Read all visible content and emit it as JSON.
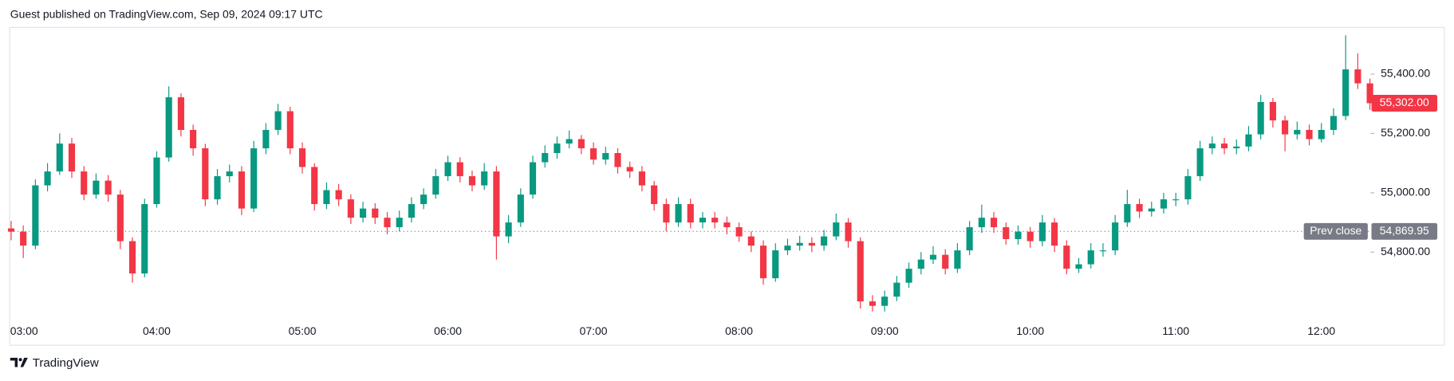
{
  "header": "Guest published on TradingView.com, Sep 09, 2024 09:17 UTC",
  "footer": "TradingView",
  "chart_data": {
    "type": "candlestick",
    "up_color": "#089981",
    "down_color": "#f23645",
    "x": [
      "03:00",
      "03:05",
      "03:10",
      "03:15",
      "03:20",
      "03:25",
      "03:30",
      "03:35",
      "03:40",
      "03:45",
      "03:50",
      "03:55",
      "04:00",
      "04:05",
      "04:10",
      "04:15",
      "04:20",
      "04:25",
      "04:30",
      "04:35",
      "04:40",
      "04:45",
      "04:50",
      "04:55",
      "05:00",
      "05:05",
      "05:10",
      "05:15",
      "05:20",
      "05:25",
      "05:30",
      "05:35",
      "05:40",
      "05:45",
      "05:50",
      "05:55",
      "06:00",
      "06:05",
      "06:10",
      "06:15",
      "06:20",
      "06:25",
      "06:30",
      "06:35",
      "06:40",
      "06:45",
      "06:50",
      "06:55",
      "07:00",
      "07:05",
      "07:10",
      "07:15",
      "07:20",
      "07:25",
      "07:30",
      "07:35",
      "07:40",
      "07:45",
      "07:50",
      "07:55",
      "08:00",
      "08:05",
      "08:10",
      "08:15",
      "08:20",
      "08:25",
      "08:30",
      "08:35",
      "08:40",
      "08:45",
      "08:50",
      "08:55",
      "09:00",
      "09:05",
      "09:10",
      "09:15",
      "09:20",
      "09:25",
      "09:30",
      "09:35",
      "09:40",
      "09:45",
      "09:50",
      "09:55",
      "10:00",
      "10:05",
      "10:10",
      "10:15",
      "10:20",
      "10:25",
      "10:30",
      "10:35",
      "10:40",
      "10:45",
      "10:50",
      "10:55",
      "11:00",
      "11:05",
      "11:10",
      "11:15",
      "11:20",
      "11:25",
      "11:30",
      "11:35",
      "11:40",
      "11:45",
      "11:50",
      "11:55",
      "12:00",
      "12:05",
      "12:10",
      "12:15",
      "12:20"
    ],
    "open": [
      54880,
      54869,
      54822,
      55025,
      55072,
      55166,
      55072,
      54994,
      55041,
      54994,
      54837,
      54728,
      54962,
      55119,
      55322,
      55212,
      55150,
      54978,
      55056,
      55072,
      54947,
      55150,
      55212,
      55275,
      55150,
      55087,
      54962,
      55009,
      54978,
      54916,
      54947,
      54916,
      54884,
      54916,
      54962,
      54994,
      55056,
      55103,
      55056,
      55025,
      55072,
      54853,
      54900,
      54994,
      55103,
      55134,
      55166,
      55181,
      55150,
      55112,
      55134,
      55087,
      55072,
      55025,
      54962,
      54900,
      54962,
      54900,
      54916,
      54900,
      54884,
      54853,
      54822,
      54712,
      54806,
      54822,
      54831,
      54822,
      54853,
      54900,
      54837,
      54634,
      54619,
      54650,
      54697,
      54744,
      54775,
      54791,
      54744,
      54806,
      54884,
      54916,
      54884,
      54844,
      54869,
      54837,
      54900,
      54822,
      54744,
      54759,
      54806,
      54806,
      54900,
      54962,
      54937,
      54947,
      54978,
      54978,
      55056,
      55150,
      55166,
      55150,
      55156,
      55197,
      55306,
      55244,
      55197,
      55212,
      55181,
      55212,
      55259,
      55416,
      55369
    ],
    "high": [
      54905,
      54890,
      55045,
      55100,
      55200,
      55185,
      55090,
      55065,
      55060,
      55010,
      54850,
      54980,
      55140,
      55359,
      55335,
      55230,
      55165,
      55080,
      55095,
      55090,
      55175,
      55235,
      55300,
      55290,
      55170,
      55100,
      55035,
      55030,
      54995,
      54970,
      54965,
      54935,
      54940,
      54985,
      55015,
      55080,
      55125,
      55120,
      55075,
      55100,
      55090,
      54925,
      55015,
      55125,
      55160,
      55190,
      55210,
      55195,
      55170,
      55155,
      55150,
      55105,
      55090,
      55040,
      54980,
      54985,
      54980,
      54935,
      54935,
      54920,
      54900,
      54870,
      54840,
      54830,
      54845,
      54855,
      54850,
      54875,
      54930,
      54915,
      54850,
      54655,
      54670,
      54720,
      54765,
      54800,
      54820,
      54810,
      54830,
      54905,
      54960,
      54935,
      54900,
      54890,
      54885,
      54925,
      54915,
      54840,
      54780,
      54830,
      54830,
      54925,
      55010,
      54980,
      54970,
      55000,
      55000,
      55080,
      55175,
      55190,
      55185,
      55180,
      55225,
      55330,
      55320,
      55260,
      55240,
      55230,
      55235,
      55285,
      55531,
      55470,
      55385
    ],
    "low": [
      54840,
      54780,
      54810,
      55005,
      55060,
      55050,
      54975,
      54980,
      54970,
      54810,
      54697,
      54715,
      54950,
      55105,
      55190,
      55125,
      54955,
      54960,
      55035,
      54925,
      54935,
      55130,
      55195,
      55130,
      55065,
      54940,
      54945,
      54955,
      54895,
      54900,
      54895,
      54860,
      54870,
      54900,
      54945,
      54980,
      55040,
      55035,
      55005,
      55010,
      54775,
      54830,
      54885,
      54980,
      55085,
      55115,
      55150,
      55130,
      55095,
      55095,
      55065,
      55050,
      55005,
      54940,
      54870,
      54885,
      54880,
      54880,
      54880,
      54860,
      54835,
      54800,
      54690,
      54700,
      54790,
      54805,
      54800,
      54805,
      54840,
      54815,
      54610,
      54600,
      54600,
      54635,
      54680,
      54725,
      54760,
      54725,
      54730,
      54790,
      54865,
      54865,
      54825,
      54825,
      54815,
      54820,
      54800,
      54725,
      54730,
      54745,
      54785,
      54790,
      54885,
      54915,
      54920,
      54930,
      54955,
      54960,
      55040,
      55130,
      55130,
      55130,
      55140,
      55180,
      55220,
      55140,
      55180,
      55160,
      55170,
      55195,
      55245,
      55350,
      55280
    ],
    "close": [
      54869,
      54822,
      55025,
      55072,
      55166,
      55072,
      54994,
      55041,
      54994,
      54837,
      54728,
      54962,
      55119,
      55322,
      55212,
      55150,
      54978,
      55056,
      55072,
      54947,
      55150,
      55212,
      55275,
      55150,
      55087,
      54962,
      55009,
      54978,
      54916,
      54947,
      54916,
      54884,
      54916,
      54962,
      54994,
      55056,
      55103,
      55056,
      55025,
      55072,
      54853,
      54900,
      54994,
      55103,
      55134,
      55166,
      55181,
      55150,
      55112,
      55134,
      55087,
      55072,
      55025,
      54962,
      54900,
      54962,
      54900,
      54916,
      54900,
      54884,
      54853,
      54822,
      54712,
      54806,
      54822,
      54831,
      54822,
      54853,
      54900,
      54837,
      54634,
      54619,
      54650,
      54697,
      54744,
      54775,
      54791,
      54744,
      54806,
      54884,
      54916,
      54884,
      54844,
      54869,
      54837,
      54900,
      54822,
      54744,
      54759,
      54806,
      54806,
      54900,
      54962,
      54937,
      54947,
      54978,
      54978,
      55056,
      55150,
      55166,
      55150,
      55156,
      55197,
      55306,
      55244,
      55197,
      55212,
      55181,
      55212,
      55259,
      55416,
      55369,
      55302
    ],
    "ylim": [
      54572,
      55556
    ],
    "yticks": [
      {
        "value": 54800,
        "label": "54,800.00"
      },
      {
        "value": 55000,
        "label": "55,000.00"
      },
      {
        "value": 55200,
        "label": "55,200.00"
      },
      {
        "value": 55400,
        "label": "55,400.00"
      }
    ],
    "xticks": [
      "03:00",
      "04:00",
      "05:00",
      "06:00",
      "07:00",
      "08:00",
      "09:00",
      "10:00",
      "11:00",
      "12:00"
    ],
    "last_price": {
      "value": 55302,
      "label": "55,302.00",
      "color": "#f23645"
    },
    "prev_close": {
      "name": "Prev close",
      "value": 54869.95,
      "label": "54,869.95",
      "color": "#787b86"
    }
  }
}
